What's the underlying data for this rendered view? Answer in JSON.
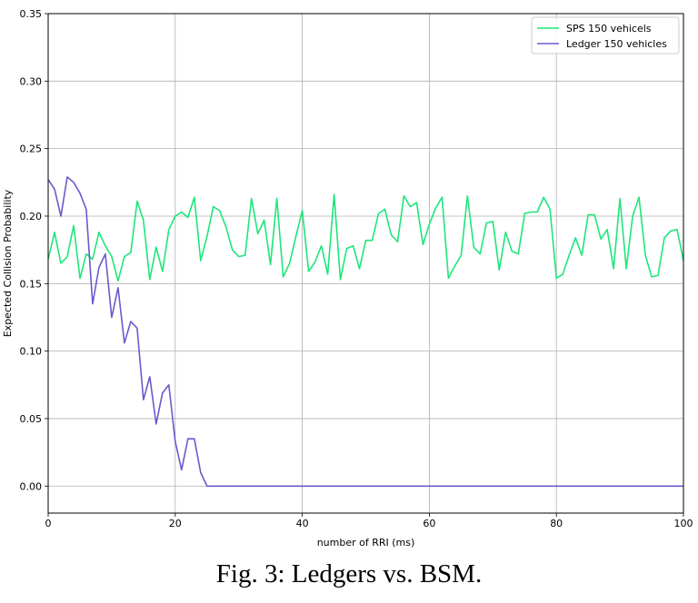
{
  "chart_data": {
    "type": "line",
    "title": "",
    "xlabel": "number of RRI (ms)",
    "ylabel": "Expected Collision Probability",
    "xlim": [
      0,
      100
    ],
    "ylim": [
      -0.02,
      0.35
    ],
    "xticks": [
      0,
      20,
      40,
      60,
      80,
      100
    ],
    "yticks": [
      0.0,
      0.05,
      0.1,
      0.15,
      0.2,
      0.25,
      0.3,
      0.35
    ],
    "ytick_labels": [
      "0.00",
      "0.05",
      "0.10",
      "0.15",
      "0.20",
      "0.25",
      "0.30",
      "0.35"
    ],
    "grid": true,
    "legend_position": "top-right",
    "series": [
      {
        "name": "SPS 150 vehicels",
        "color": "#1ee67a",
        "x": [
          0,
          1,
          2,
          3,
          4,
          5,
          6,
          7,
          8,
          9,
          10,
          11,
          12,
          13,
          14,
          15,
          16,
          17,
          18,
          19,
          20,
          21,
          22,
          23,
          24,
          25,
          26,
          27,
          28,
          29,
          30,
          31,
          32,
          33,
          34,
          35,
          36,
          37,
          38,
          39,
          40,
          41,
          42,
          43,
          44,
          45,
          46,
          47,
          48,
          49,
          50,
          51,
          52,
          53,
          54,
          55,
          56,
          57,
          58,
          59,
          60,
          61,
          62,
          63,
          64,
          65,
          66,
          67,
          68,
          69,
          70,
          71,
          72,
          73,
          74,
          75,
          76,
          77,
          78,
          79,
          80,
          81,
          82,
          83,
          84,
          85,
          86,
          87,
          88,
          89,
          90,
          91,
          92,
          93,
          94,
          95,
          96,
          97,
          98,
          99,
          100
        ],
        "y": [
          0.168,
          0.188,
          0.165,
          0.17,
          0.193,
          0.154,
          0.172,
          0.168,
          0.188,
          0.178,
          0.17,
          0.152,
          0.17,
          0.173,
          0.211,
          0.197,
          0.153,
          0.177,
          0.159,
          0.19,
          0.2,
          0.203,
          0.199,
          0.214,
          0.167,
          0.185,
          0.207,
          0.204,
          0.192,
          0.175,
          0.17,
          0.171,
          0.213,
          0.187,
          0.197,
          0.164,
          0.213,
          0.155,
          0.165,
          0.185,
          0.204,
          0.159,
          0.166,
          0.178,
          0.157,
          0.216,
          0.153,
          0.176,
          0.178,
          0.161,
          0.182,
          0.182,
          0.202,
          0.205,
          0.186,
          0.181,
          0.215,
          0.207,
          0.21,
          0.179,
          0.194,
          0.206,
          0.214,
          0.154,
          0.163,
          0.171,
          0.215,
          0.177,
          0.172,
          0.195,
          0.196,
          0.16,
          0.188,
          0.174,
          0.172,
          0.202,
          0.203,
          0.203,
          0.214,
          0.205,
          0.154,
          0.157,
          0.171,
          0.184,
          0.171,
          0.201,
          0.201,
          0.183,
          0.19,
          0.161,
          0.213,
          0.161,
          0.2,
          0.214,
          0.171,
          0.155,
          0.156,
          0.184,
          0.189,
          0.19,
          0.167
        ]
      },
      {
        "name": "Ledger 150 vehicles",
        "color": "#6a5acd",
        "x": [
          0,
          1,
          2,
          3,
          4,
          5,
          6,
          7,
          8,
          9,
          10,
          11,
          12,
          13,
          14,
          15,
          16,
          17,
          18,
          19,
          20,
          21,
          22,
          23,
          24,
          25,
          26,
          27,
          28,
          29,
          30,
          31,
          32,
          33,
          34,
          35,
          36,
          37,
          38,
          39,
          40,
          41,
          42,
          43,
          44,
          45,
          46,
          47,
          48,
          49,
          50,
          51,
          52,
          53,
          54,
          55,
          56,
          57,
          58,
          59,
          60,
          61,
          62,
          63,
          64,
          65,
          66,
          67,
          68,
          69,
          70,
          71,
          72,
          73,
          74,
          75,
          76,
          77,
          78,
          79,
          80,
          81,
          82,
          83,
          84,
          85,
          86,
          87,
          88,
          89,
          90,
          91,
          92,
          93,
          94,
          95,
          96,
          97,
          98,
          99,
          100
        ],
        "y": [
          0.227,
          0.22,
          0.2,
          0.229,
          0.225,
          0.217,
          0.205,
          0.135,
          0.162,
          0.172,
          0.125,
          0.147,
          0.106,
          0.122,
          0.117,
          0.064,
          0.081,
          0.046,
          0.069,
          0.075,
          0.033,
          0.012,
          0.035,
          0.035,
          0.01,
          0.0,
          0.0,
          0.0,
          0.0,
          0.0,
          0.0,
          0.0,
          0.0,
          0.0,
          0.0,
          0.0,
          0.0,
          0.0,
          0.0,
          0.0,
          0.0,
          0.0,
          0.0,
          0.0,
          0.0,
          0.0,
          0.0,
          0.0,
          0.0,
          0.0,
          0.0,
          0.0,
          0.0,
          0.0,
          0.0,
          0.0,
          0.0,
          0.0,
          0.0,
          0.0,
          0.0,
          0.0,
          0.0,
          0.0,
          0.0,
          0.0,
          0.0,
          0.0,
          0.0,
          0.0,
          0.0,
          0.0,
          0.0,
          0.0,
          0.0,
          0.0,
          0.0,
          0.0,
          0.0,
          0.0,
          0.0,
          0.0,
          0.0,
          0.0,
          0.0,
          0.0,
          0.0,
          0.0,
          0.0,
          0.0,
          0.0,
          0.0,
          0.0,
          0.0,
          0.0,
          0.0,
          0.0,
          0.0,
          0.0,
          0.0,
          0.0
        ]
      }
    ]
  },
  "caption": "Fig. 3: Ledgers vs. BSM."
}
